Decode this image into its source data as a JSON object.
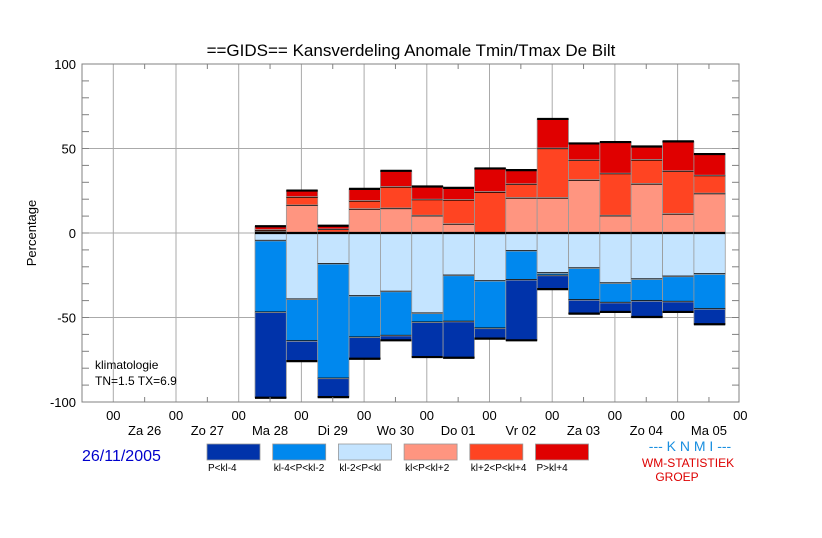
{
  "chart_data": {
    "type": "bar",
    "stacked": true,
    "diverging": true,
    "title": "==GIDS== Kansverdeling Anomale Tmin/Tmax De Bilt",
    "ylabel": "Percentage",
    "xlabel": "",
    "ylim": [
      -100,
      100
    ],
    "yticks": [
      100,
      50,
      0,
      -50,
      -100
    ],
    "ytick_labels": [
      "100",
      "50",
      "0",
      "-50",
      "-100"
    ],
    "grid": true,
    "x_hour_labels": [
      "00",
      "00",
      "00",
      "00",
      "00",
      "00",
      "00",
      "00",
      "00",
      "00",
      "00"
    ],
    "x_day_labels": [
      "Za 26",
      "Zo 27",
      "Ma 28",
      "Di 29",
      "Wo 30",
      "Do 01",
      "Vr 02",
      "Za 03",
      "Zo 04",
      "Ma 05"
    ],
    "x_period_count": 21,
    "first_bar_period": 5,
    "annotation": [
      "klimatologie",
      "TN=1.5  TX=6.9"
    ],
    "legend_position": "bottom",
    "series": [
      {
        "name": "P<kl-4",
        "color": "#0033aa",
        "side": "negative",
        "values": [
          50.4,
          11.7,
          10.9,
          12.5,
          2.6,
          20.4,
          21.2,
          5.9,
          35.6,
          7.9,
          7.9,
          5.3,
          9.3,
          5.9,
          8.9
        ]
      },
      {
        "name": "kl-4<P<kl-2",
        "color": "#0088ee",
        "side": "negative",
        "values": [
          42.4,
          24.7,
          67.8,
          24.5,
          26.1,
          5.3,
          27.3,
          28.1,
          17.2,
          1.4,
          18.8,
          11.5,
          12.9,
          14.9,
          20.6
        ]
      },
      {
        "name": "kl-2<P<kl",
        "color": "#c4e4ff",
        "side": "negative",
        "values": [
          4.7,
          39.4,
          18.4,
          37.4,
          34.8,
          47.7,
          25.3,
          28.5,
          10.7,
          23.9,
          21.0,
          29.9,
          27.5,
          25.9,
          24.5
        ]
      },
      {
        "name": "kl<P<kl+2",
        "color": "#ff9580",
        "side": "positive",
        "values": [
          1.0,
          16.6,
          0.5,
          14.4,
          14.8,
          10.5,
          5.5,
          0.0,
          21.0,
          21.0,
          31.6,
          10.5,
          29.3,
          11.5,
          23.6
        ]
      },
      {
        "name": "kl+2<P<kl+4",
        "color": "#ff4422",
        "side": "positive",
        "values": [
          1.0,
          4.9,
          1.9,
          4.8,
          12.7,
          9.5,
          14.3,
          24.5,
          8.1,
          29.3,
          11.7,
          24.9,
          14.2,
          25.3,
          10.6
        ]
      },
      {
        "name": "P>kl+4",
        "color": "#e00000",
        "side": "positive",
        "values": [
          2.0,
          3.6,
          1.9,
          6.9,
          9.3,
          7.5,
          6.9,
          13.7,
          8.1,
          17.2,
          9.7,
          18.4,
          7.7,
          17.4,
          12.5
        ]
      }
    ]
  },
  "footer": {
    "date": "26/11/2005",
    "knmi": "--- K N M I ---",
    "org_line1": "WM-STATISTIEK",
    "org_line2": "GROEP"
  },
  "colors": {
    "axis": "#808080",
    "grid": "#aaaaaa",
    "date": "#0000cc",
    "knmi": "#1a8fe0",
    "org": "#dd0000"
  }
}
